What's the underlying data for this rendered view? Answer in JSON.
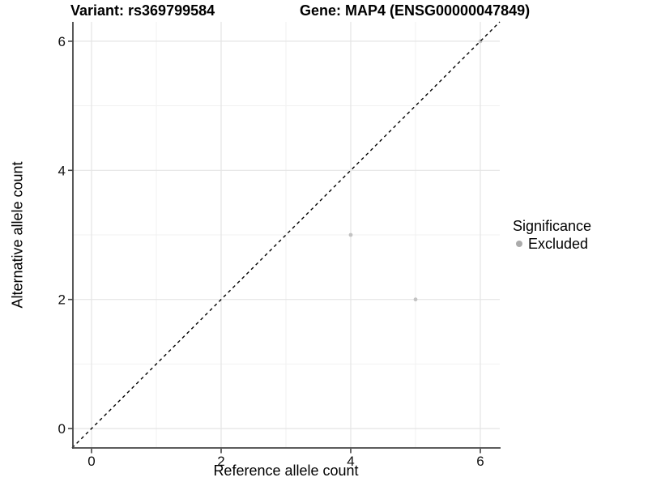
{
  "chart_data": {
    "type": "scatter",
    "title_variant": "Variant: rs369799584",
    "title_gene": "Gene: MAP4 (ENSG00000047849)",
    "xlabel": "Reference allele count",
    "ylabel": "Alternative allele count",
    "xlim": [
      -0.3,
      6.3
    ],
    "ylim": [
      -0.3,
      6.3
    ],
    "x_ticks": [
      0,
      2,
      4,
      6
    ],
    "y_ticks": [
      0,
      2,
      4,
      6
    ],
    "x_minor_gridlines": [
      1,
      3,
      5
    ],
    "y_minor_gridlines": [
      1,
      3,
      5
    ],
    "grid": "major and minor gridlines on",
    "identity_line": {
      "type": "abline",
      "slope": 1,
      "intercept": 0,
      "style": "dashed",
      "color": "#000000"
    },
    "series": [
      {
        "name": "Excluded",
        "color": "#c3c3c3",
        "points": [
          {
            "x": 4,
            "y": 3
          },
          {
            "x": 5,
            "y": 2
          },
          {
            "x": 6,
            "y": 6
          }
        ]
      }
    ],
    "legend": {
      "title": "Significance",
      "position": "right",
      "entries": [
        {
          "label": "Excluded",
          "color": "#ababab"
        }
      ]
    }
  },
  "style": {
    "grid_major_color": "#e4e4e4",
    "grid_minor_color": "#f1f1f1",
    "axis_line_color": "#454545",
    "tick_label_color": "#111111",
    "dashed_line_color": "#000000",
    "background_color": "#ffffff"
  }
}
